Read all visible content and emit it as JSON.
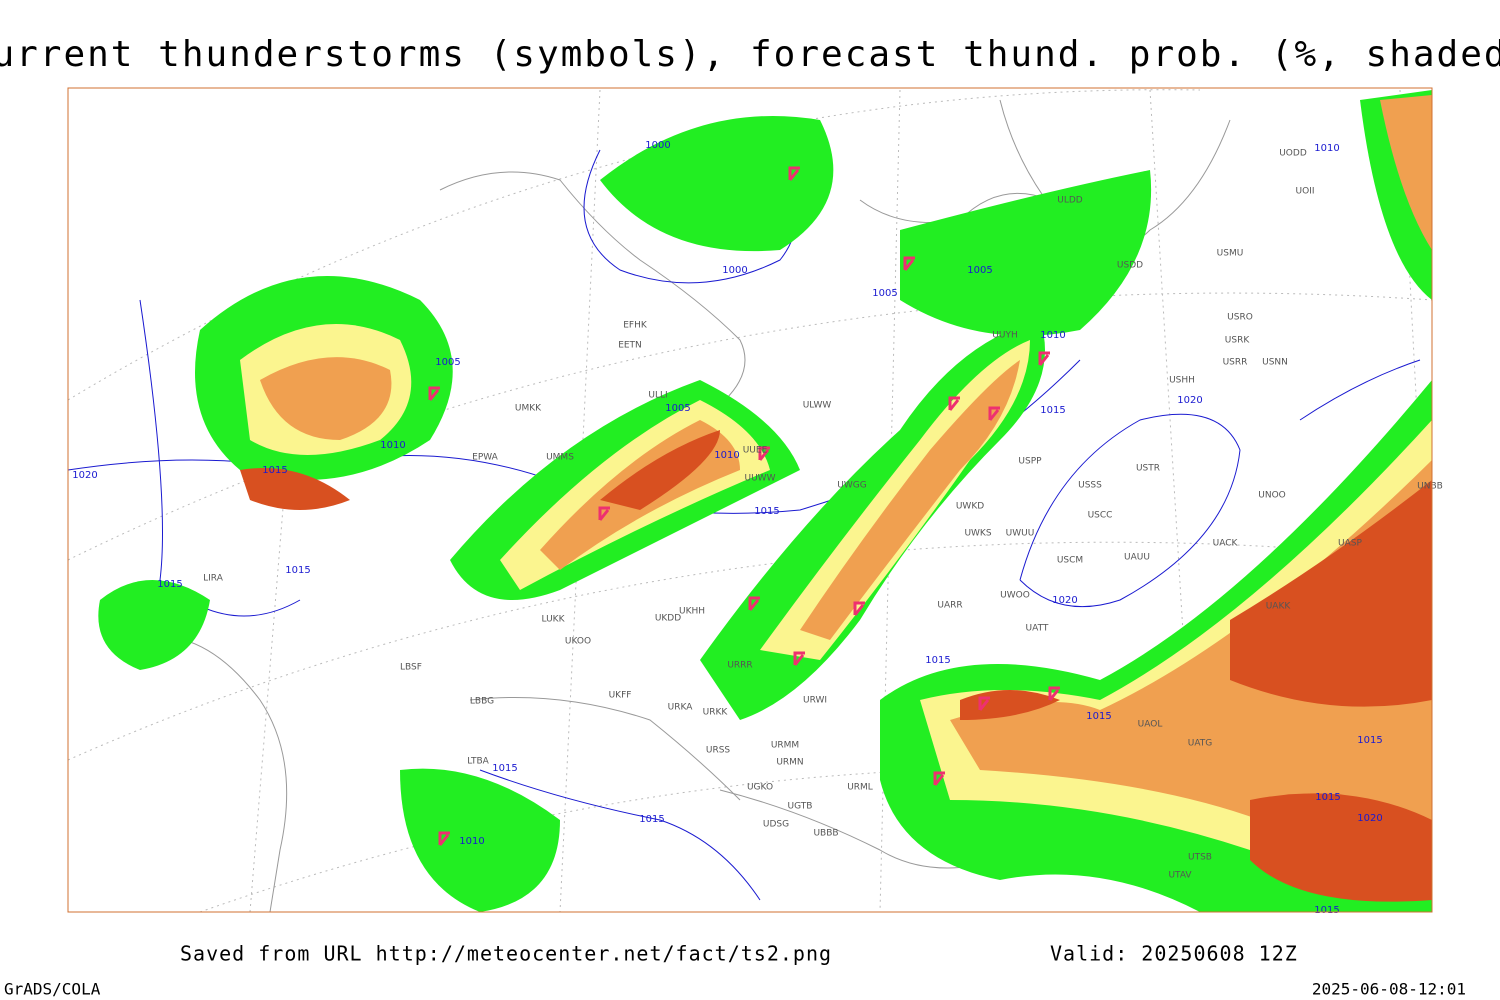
{
  "header": {
    "title": "Current thunderstorms (symbols), forecast thund. prob. (%, shaded)"
  },
  "footer": {
    "source": "Saved from URL http://meteocenter.net/fact/ts2.png",
    "valid": "Valid: 20250608 12Z",
    "software": "GrADS/COLA",
    "timestamp": "2025-06-08-12:01"
  },
  "isobar_labels": [
    "1000",
    "1000",
    "1005",
    "1005",
    "1005",
    "1005",
    "1010",
    "1010",
    "1010",
    "1015",
    "1015",
    "1015",
    "1015",
    "1015",
    "1020",
    "1020",
    "1020",
    "1010",
    "1015",
    "1015",
    "1015",
    "1015",
    "1020",
    "1015",
    "1015",
    "1010",
    "1015"
  ],
  "stations": [
    "EFHK",
    "EETN",
    "ULLI",
    "UMKK",
    "EPWA",
    "UMMS",
    "UUEE",
    "UUWW",
    "UWGG",
    "ULWW",
    "USPP",
    "USTR",
    "USSS",
    "UNOO",
    "USCC",
    "UACK",
    "USCM",
    "UAUU",
    "UWOO",
    "UATT",
    "UARR",
    "LIRA",
    "LBSF",
    "LBBG",
    "UKDD",
    "UKHH",
    "UKOO",
    "LUKK",
    "URRR",
    "URWI",
    "URMM",
    "URSS",
    "URMN",
    "UGKO",
    "UGTB",
    "UDSG",
    "UBBB",
    "URML",
    "LTBA",
    "UTAV",
    "UTSB",
    "UATG",
    "UAOL",
    "UAKK",
    "UASP",
    "UNBB",
    "USNN",
    "USRR",
    "USHH",
    "USRK",
    "USRO",
    "USMU",
    "UOII",
    "UODD",
    "USDD",
    "ULDD",
    "UUYH",
    "UWKD",
    "UWKS",
    "UWUU",
    "UKFF",
    "URKK",
    "URKA"
  ]
}
